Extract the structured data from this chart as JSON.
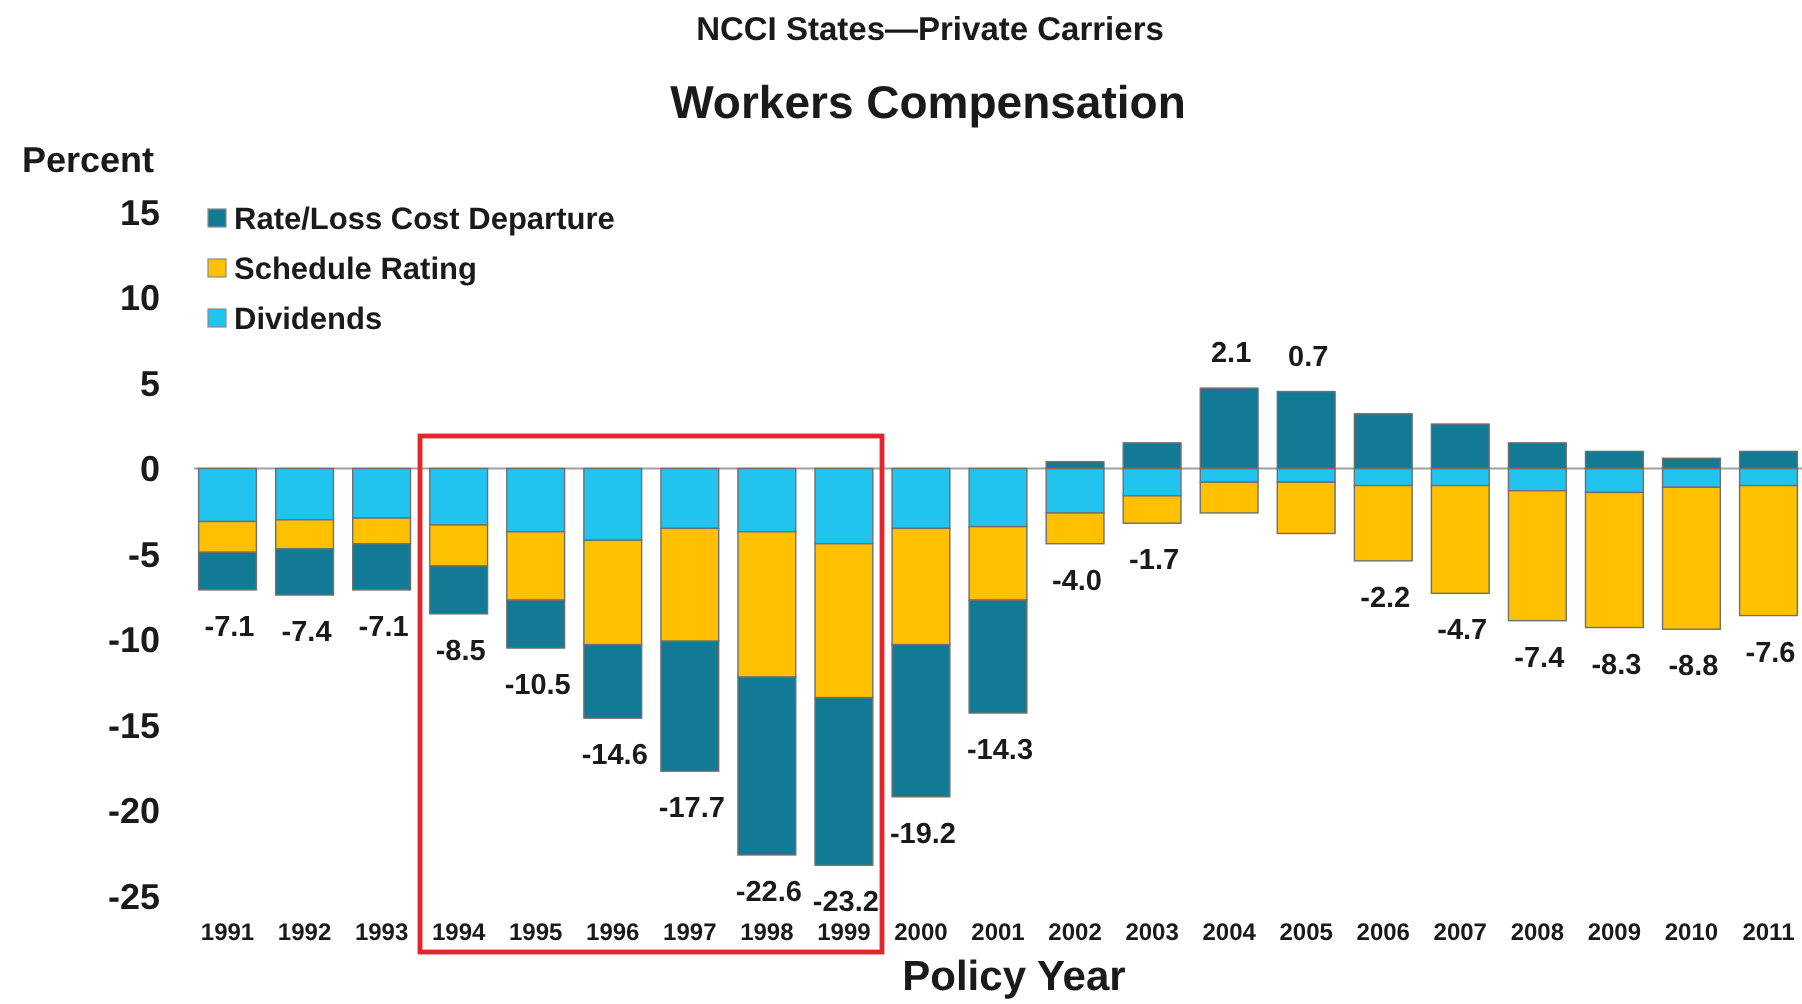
{
  "chart_data": {
    "type": "bar",
    "title": "Workers Compensation",
    "subtitle": "NCCI States—Private Carriers",
    "xlabel": "Policy Year",
    "ylabel": "Percent",
    "categories": [
      "1991",
      "1992",
      "1993",
      "1994",
      "1995",
      "1996",
      "1997",
      "1998",
      "1999",
      "2000",
      "2001",
      "2002",
      "2003",
      "2004",
      "2005",
      "2006",
      "2007",
      "2008",
      "2009",
      "2010",
      "2011"
    ],
    "stacked": true,
    "series": [
      {
        "name": "Dividends",
        "color": "#21c4ef",
        "values": [
          -3.1,
          -3.0,
          -2.9,
          -3.3,
          -3.7,
          -4.2,
          -3.5,
          -3.7,
          -4.4,
          -3.5,
          -3.4,
          -2.6,
          -1.6,
          -0.8,
          -0.8,
          -1.0,
          -1.0,
          -1.3,
          -1.4,
          -1.1,
          -1.0
        ]
      },
      {
        "name": "Schedule Rating",
        "color": "#ffc000",
        "values": [
          -1.8,
          -1.7,
          -1.5,
          -2.4,
          -4.0,
          -6.1,
          -6.6,
          -8.5,
          -9.0,
          -6.8,
          -4.3,
          -1.8,
          -1.6,
          -1.8,
          -3.0,
          -4.4,
          -6.3,
          -7.6,
          -7.9,
          -8.3,
          -7.6
        ]
      },
      {
        "name": "Rate/Loss Cost Departure",
        "color": "#137a96",
        "values": [
          -2.2,
          -2.7,
          -2.7,
          -2.8,
          -2.8,
          -4.3,
          -7.6,
          -10.4,
          -9.8,
          -8.9,
          -6.6,
          0.4,
          1.5,
          4.7,
          4.5,
          3.2,
          2.6,
          1.5,
          1.0,
          0.6,
          1.0
        ]
      }
    ],
    "totals": [
      "-7.1",
      "-7.4",
      "-7.1",
      "-8.5",
      "-10.5",
      "-14.6",
      "-17.7",
      "-22.6",
      "-23.2",
      "-19.2",
      "-14.3",
      "-4.0",
      "-1.7",
      "2.1",
      "0.7",
      "-2.2",
      "-4.7",
      "-7.4",
      "-8.3",
      "-8.8",
      "-7.6"
    ],
    "ylim": [
      -25,
      15
    ],
    "yticks": [
      -25,
      -20,
      -15,
      -10,
      -5,
      0,
      5,
      10,
      15
    ],
    "legend": "top left"
  }
}
